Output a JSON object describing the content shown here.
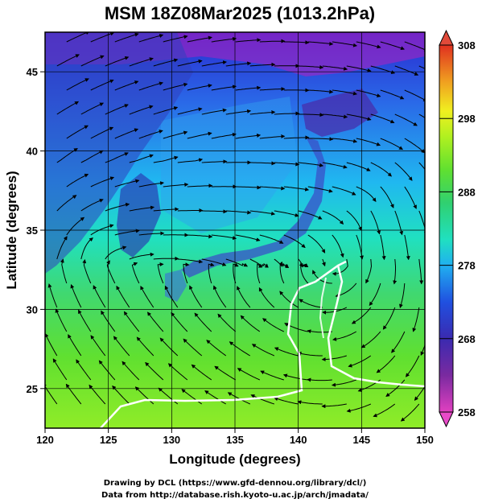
{
  "title": "MSM 18Z08Mar2025 (1013.2hPa)",
  "axes": {
    "xlabel": "Longitude (degrees)",
    "ylabel": "Latitude  (degrees)",
    "xticks": [
      "120",
      "125",
      "130",
      "135",
      "140",
      "145",
      "150"
    ],
    "yticks": [
      "25",
      "30",
      "35",
      "40",
      "45"
    ],
    "xlim": [
      120,
      150
    ],
    "ylim": [
      22.5,
      47.5
    ]
  },
  "colorbar": {
    "ticks": [
      "258",
      "268",
      "278",
      "288",
      "298",
      "308"
    ],
    "range": [
      258,
      308
    ],
    "colors": [
      "#e040c0",
      "#7a2aa0",
      "#3a2ab0",
      "#2050e0",
      "#20b0f0",
      "#20e0c0",
      "#30d070",
      "#60e030",
      "#b0f020",
      "#f0f020",
      "#f0a020",
      "#e03020"
    ]
  },
  "credits": {
    "line1": "Drawing by DCL (https://www.gfd-dennou.org/library/dcl/)",
    "line2": "Data from http://database.rish.kyoto-u.ac.jp/arch/jmadata/"
  }
}
